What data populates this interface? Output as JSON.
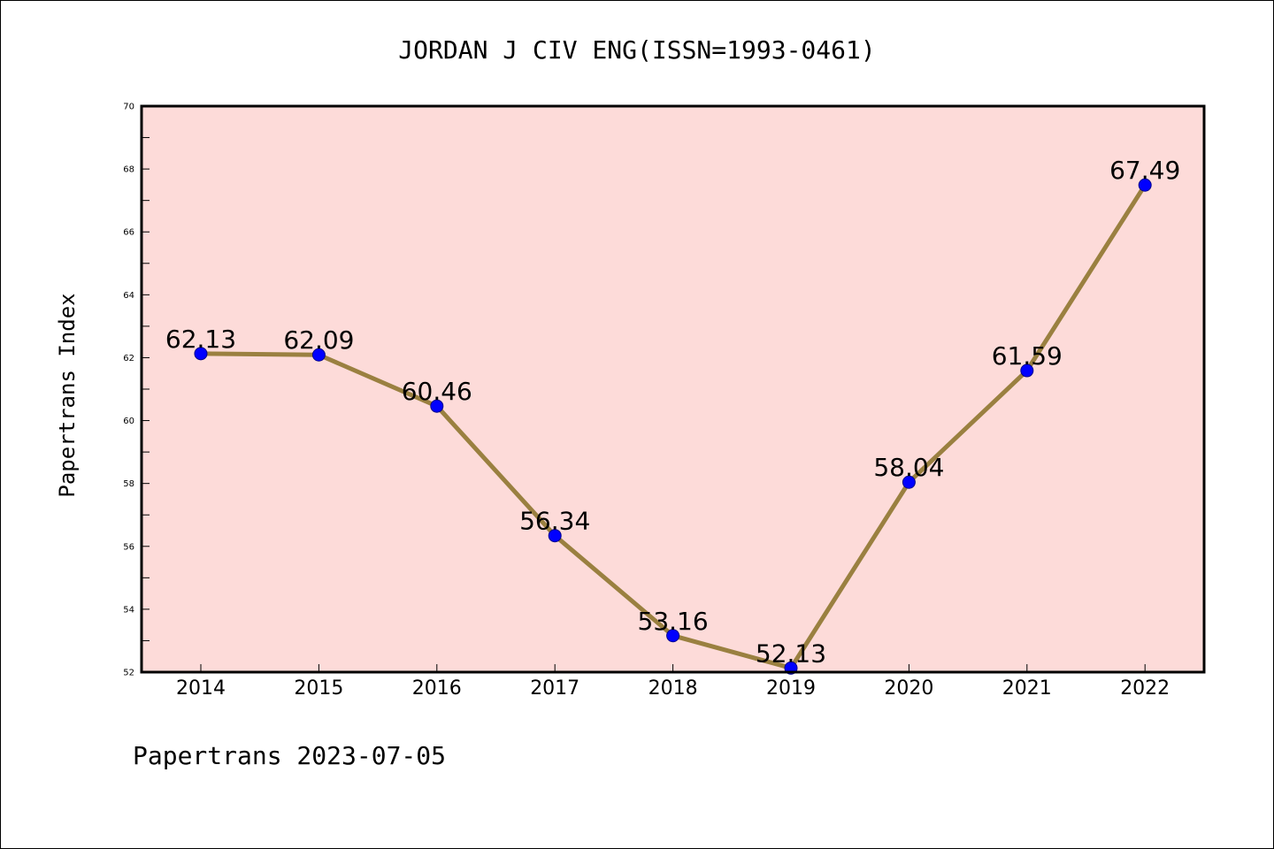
{
  "chart_data": {
    "type": "line",
    "title": "JORDAN J CIV ENG(ISSN=1993-0461)",
    "ylabel": "Papertrans Index",
    "xlabel": "",
    "footer": "Papertrans 2023-07-05",
    "categories": [
      "2014",
      "2015",
      "2016",
      "2017",
      "2018",
      "2019",
      "2020",
      "2021",
      "2022"
    ],
    "values": [
      62.13,
      62.09,
      60.46,
      56.34,
      53.16,
      52.13,
      58.04,
      61.59,
      67.49
    ],
    "value_labels": [
      "62.13",
      "62.09",
      "60.46",
      "56.34",
      "53.16",
      "52.13",
      "58.04",
      "61.59",
      "67.49"
    ],
    "ylim": [
      52,
      70
    ],
    "yticks": [
      "52",
      "54",
      "56",
      "58",
      "60",
      "62",
      "64",
      "66",
      "68",
      "70"
    ],
    "grid": false,
    "colors": {
      "plot_background": "#fddbd9",
      "line": "#9a8040",
      "marker": "#0000ff"
    }
  }
}
